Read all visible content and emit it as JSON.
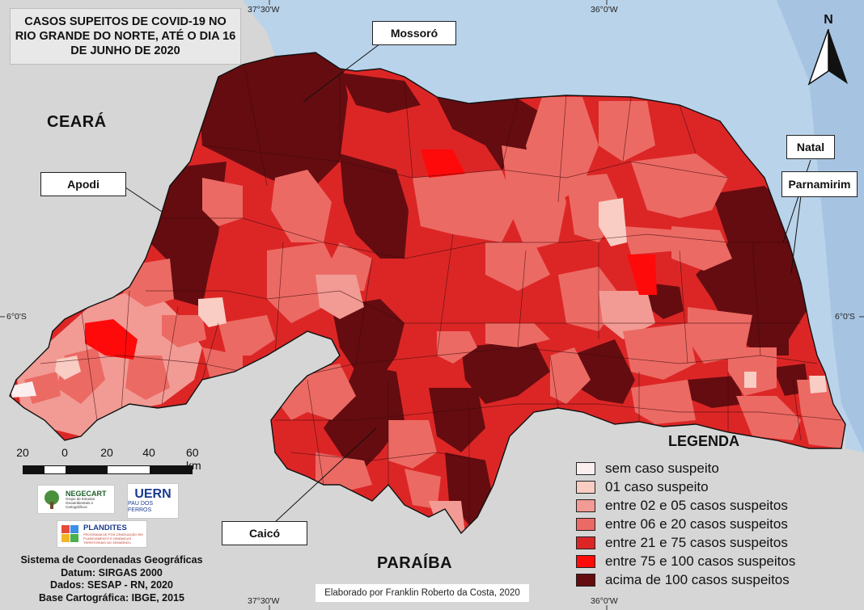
{
  "title_lines": [
    "CASOS SUPEITOS DE COVID-19 NO",
    "RIO GRANDE DO NORTE, ATÉ O DIA 16",
    "DE JUNHO DE 2020"
  ],
  "callouts": {
    "mossoro": "Mossoró",
    "apodi": "Apodi",
    "natal": "Natal",
    "parnamirim": "Parnamirim",
    "caico": "Caicó"
  },
  "states": {
    "ceara": "CEARÁ",
    "paraiba": "PARAÍBA"
  },
  "coordinates": {
    "top_left": "37°30'W",
    "top_right": "36°0'W",
    "bottom_left": "37°30'W",
    "bottom_right": "36°0'W",
    "left_lat": "6°0'S",
    "right_lat": "6°0'S"
  },
  "north_label": "N",
  "legend": {
    "title": "LEGENDA",
    "items": [
      {
        "label": "sem caso suspeito",
        "color": "#fbeeee"
      },
      {
        "label": "01 caso suspeito",
        "color": "#f9cdc3"
      },
      {
        "label": "entre 02 e 05 casos suspeitos",
        "color": "#f29a94"
      },
      {
        "label": "entre 06 e 20 casos suspeitos",
        "color": "#ec6a64"
      },
      {
        "label": "entre 21 e 75 casos suspeitos",
        "color": "#dc2626"
      },
      {
        "label": "entre 75 e 100 casos suspeitos",
        "color": "#ff0a0a"
      },
      {
        "label": "acima de 100 casos suspeitos",
        "color": "#650c10"
      }
    ]
  },
  "scale": {
    "labels": [
      "20",
      "0",
      "20",
      "40",
      "60 km"
    ]
  },
  "logos": {
    "negecart": {
      "name": "NEGECART",
      "subtitle": "Grupo de Estudos Geoambientais e Cartográficos"
    },
    "uern": {
      "name": "UERN",
      "subtitle": "PAU DOS FERROS"
    },
    "plandites": {
      "name": "PLANDITES",
      "subtitle": "PROGRAMA DE PÓS-GRADUAÇÃO EM PLANEJAMENTO E DINÂMICAS TERRITORIAIS NO SEMIÁRIDO"
    }
  },
  "credits": [
    "Sistema de Coordenadas Geográficas",
    "Datum: SIRGAS 2000",
    "Dados: SESAP - RN, 2020",
    "Base Cartográfica: IBGE, 2015"
  ],
  "author": "Elaborado por Franklin Roberto da Costa, 2020",
  "colors": {
    "ocean": "#b9d3ea",
    "ocean_deep": "#a6c4e2",
    "neighbor_land": "#d6d6d6"
  }
}
